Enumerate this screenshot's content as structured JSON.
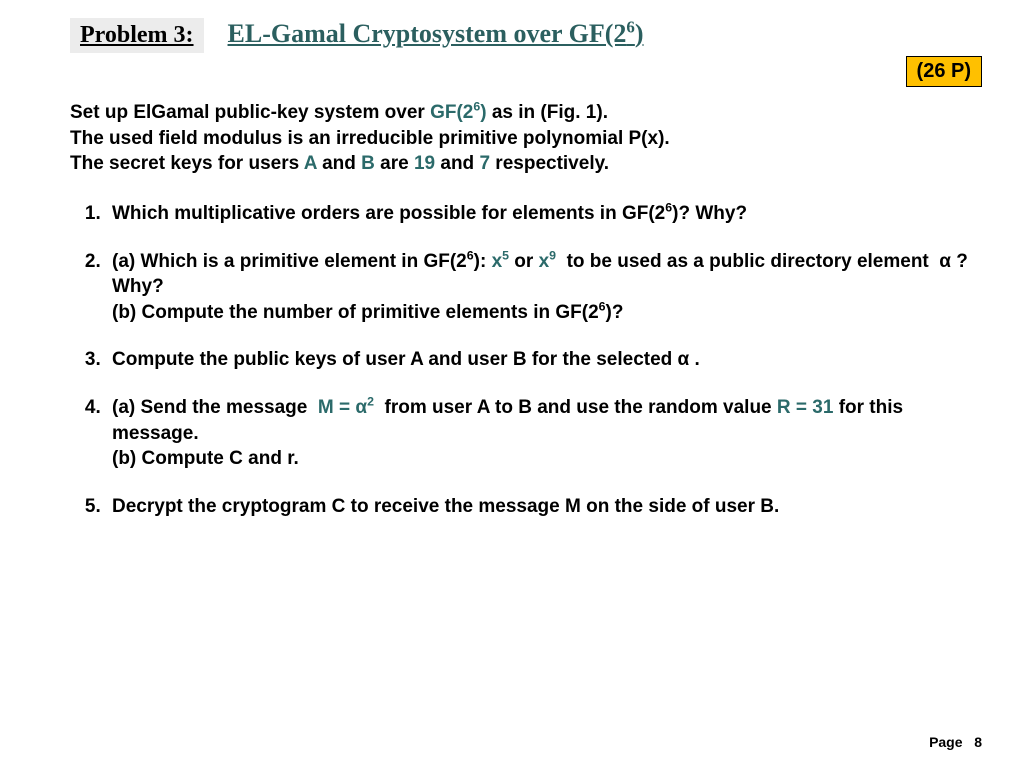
{
  "header": {
    "problem_label": "Problem 3:",
    "title_html": "EL-Gamal Cryptosystem over GF(2<sup>6</sup>)",
    "points": "(26 P)"
  },
  "colors": {
    "accent": "#2b6a6a",
    "badge_bg": "#ffc000",
    "label_bg": "#ececec",
    "text": "#000000",
    "page_bg": "#ffffff"
  },
  "intro_html": "Set up ElGamal public-key system over <span class=\"hl\">GF(2<sup>6</sup>)</span> as in (Fig. 1).<br>The used field modulus is an irreducible primitive polynomial P(x).<br>The secret keys for users <span class=\"hl\">A</span> and <span class=\"hl\">B</span> are <span class=\"hl\">19</span> and <span class=\"hl\">7</span> respectively.",
  "questions": [
    "Which multiplicative orders are possible for elements in GF(2<sup>6</sup>)? Why?",
    "(a) Which is a primitive element in GF(2<sup>6</sup>): <span class=\"hl\">x<sup>5</sup></span> or <span class=\"hl\">x<sup>9</sup></span>&nbsp; to be used as a public directory element &nbsp;&alpha; ? Why?<br>(b) Compute the number of primitive elements in GF(2<sup>6</sup>)?",
    "Compute the public keys of user A and user B for the selected &alpha; .",
    "(a) Send the message &nbsp;<span class=\"hl\">M = &alpha;<sup>2</sup></span>&nbsp; from user A to B and use the random value <span class=\"hl\">R = 31</span> for this message.<br>(b) Compute C and r.",
    "Decrypt the cryptogram C to receive the message M on the side of user B."
  ],
  "footer": {
    "page_label": "Page",
    "page_number": "8"
  }
}
